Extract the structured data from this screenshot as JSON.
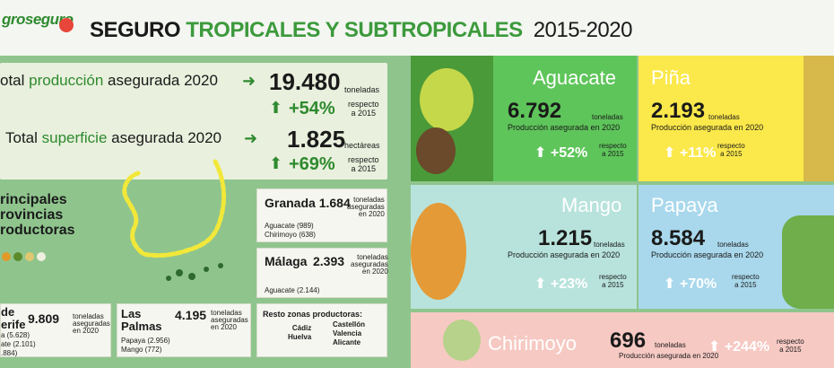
{
  "header": {
    "logo": "groseguro",
    "title_part1": "SEGURO ",
    "title_part2": "TROPICALES Y SUBTROPICALES",
    "years": "2015-2020"
  },
  "production": {
    "label_pre": "otal ",
    "label_green": "producción",
    "label_post": " asegurada 2020",
    "value": "19.480",
    "unit": "toneladas",
    "pct": "+54%",
    "pct_note_1": "respecto",
    "pct_note_2": "a 2015"
  },
  "surface": {
    "label_pre": "Total ",
    "label_green": "superficie",
    "label_post": " asegurada 2020",
    "value": "1.825",
    "unit": "hectáreas",
    "pct": "+69%",
    "pct_note_1": "respecto",
    "pct_note_2": "a 2015"
  },
  "provinces": {
    "title": "rincipales\nrovincias\nroductoras"
  },
  "granada": {
    "name": "Granada",
    "value": "1.684",
    "unit_1": "toneladas",
    "unit_2": "aseguradas",
    "unit_3": "en 2020",
    "detail_1": "Aguacate (989)",
    "detail_2": "Chirimoyo (638)"
  },
  "malaga": {
    "name": "Málaga",
    "value": "2.393",
    "unit_1": "toneladas",
    "unit_2": "aseguradas",
    "unit_3": "en 2020",
    "detail_1": "Aguacate (2.144)"
  },
  "tenerife": {
    "name_1": "de",
    "name_2": "erife",
    "value": "9.809",
    "unit_1": "toneladas",
    "unit_2": "aseguradas",
    "unit_3": "en 2020",
    "detail_1": "a (5.628)",
    "detail_2": "ate (2.101)",
    "detail_3": ".884)"
  },
  "laspalmas": {
    "name_1": "Las",
    "name_2": "Palmas",
    "value": "4.195",
    "unit_1": "toneladas",
    "unit_2": "aseguradas",
    "unit_3": "en 2020",
    "detail_1": "Papaya (2.956)",
    "detail_2": "Mango (772)"
  },
  "resto": {
    "title": "Resto zonas productoras:",
    "col1_1": "Cádiz",
    "col1_2": "Huelva",
    "col2_1": "Castellón",
    "col2_2": "Valencia",
    "col2_3": "Alicante"
  },
  "fruits": {
    "aguacate": {
      "name": "Aguacate",
      "value": "6.792",
      "unit": "toneladas",
      "sub": "Producción asegurada en 2020",
      "pct": "+52%",
      "note_1": "respecto",
      "note_2": "a 2015"
    },
    "pina": {
      "name": "Piña",
      "value": "2.193",
      "unit": "toneladas",
      "sub": "Producción asegurada en 2020",
      "pct": "+11%",
      "note_1": "respecto",
      "note_2": "a 2015"
    },
    "mango": {
      "name": "Mango",
      "value": "1.215",
      "unit": "toneladas",
      "sub": "Producción asegurada en 2020",
      "pct": "+23%",
      "note_1": "respecto",
      "note_2": "a 2015"
    },
    "papaya": {
      "name": "Papaya",
      "value": "8.584",
      "unit": "toneladas",
      "sub": "Producción asegurada en 2020",
      "pct": "+70%",
      "note_1": "respecto",
      "note_2": "a 2015"
    },
    "chirimoyo": {
      "name": "Chirimoyo",
      "value": "696",
      "unit": "toneladas",
      "sub": "Producción asegurada en 2020",
      "pct": "+244%",
      "note_1": "respecto",
      "note_2": "a 2015"
    }
  },
  "colors": {
    "background": "#8fc58d",
    "accent_green": "#2e8a2e",
    "aguacate_bg": "#5ec55a",
    "pina_bg": "#fbe84a",
    "mango_bg": "#b8e3dc",
    "papaya_bg": "#a9d8ec",
    "chirimoyo_bg": "#f6c9c3"
  }
}
